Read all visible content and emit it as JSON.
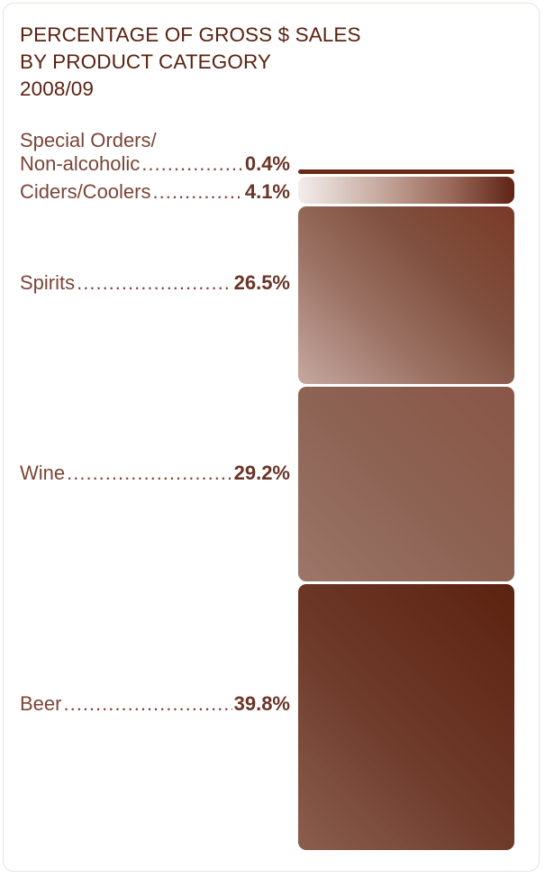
{
  "chart_data": {
    "type": "bar",
    "title_lines": [
      "PERCENTAGE OF GROSS $ SALES",
      "BY PRODUCT CATEGORY",
      "2008/09"
    ],
    "categories": [
      "Special Orders/ Non-alcoholic",
      "Ciders/Coolers",
      "Spirits",
      "Wine",
      "Beer"
    ],
    "values": [
      0.4,
      4.1,
      26.5,
      29.2,
      39.8
    ],
    "unit": "%",
    "stacked": true,
    "segments": [
      {
        "name_lines": [
          "Special Orders/",
          "Non-alcoholic"
        ],
        "value": 0.4,
        "value_label": "0.4%",
        "color": "#6b2a18"
      },
      {
        "name_lines": [
          "Ciders/Coolers"
        ],
        "value": 4.1,
        "value_label": "4.1%",
        "color": "#5e2414"
      },
      {
        "name_lines": [
          "Spirits"
        ],
        "value": 26.5,
        "value_label": "26.5%",
        "color": "#7a3a27"
      },
      {
        "name_lines": [
          "Wine"
        ],
        "value": 29.2,
        "value_label": "29.2%",
        "color": "#8a5646"
      },
      {
        "name_lines": [
          "Beer"
        ],
        "value": 39.8,
        "value_label": "39.8%",
        "color": "#5c2210"
      }
    ]
  }
}
